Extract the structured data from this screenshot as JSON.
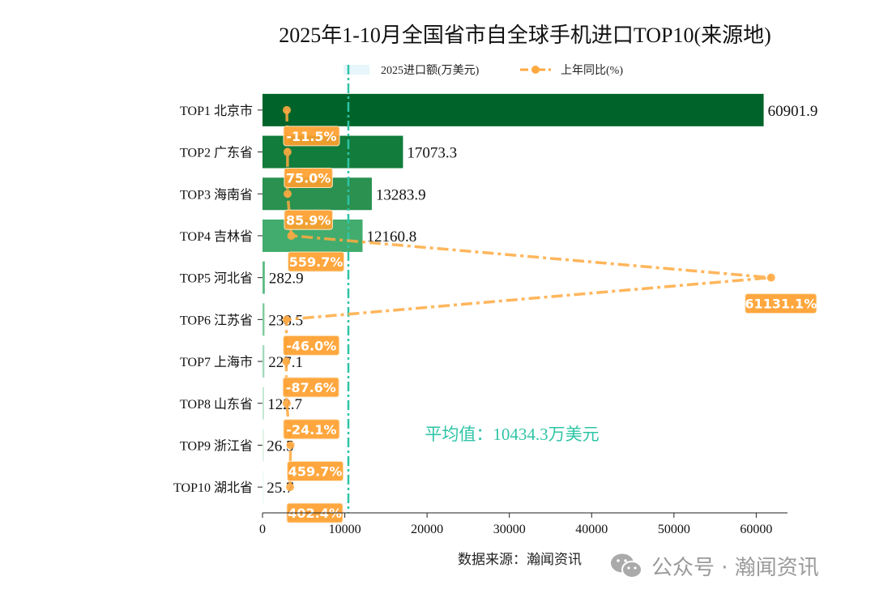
{
  "chart_data": {
    "type": "bar",
    "orientation": "horizontal",
    "title": "2025年1-10月全国省市自全球手机进口TOP10(来源地)",
    "categories": [
      "TOP1 北京市",
      "TOP2 广东省",
      "TOP3 海南省",
      "TOP4 吉林省",
      "TOP5 河北省",
      "TOP6 江苏省",
      "TOP7 上海市",
      "TOP8 山东省",
      "TOP9 浙江省",
      "TOP10 湖北省"
    ],
    "series": [
      {
        "name": "2025进口额(万美元)",
        "type": "bar",
        "values": [
          60901.9,
          17073.3,
          13283.9,
          12160.8,
          282.9,
          238.5,
          227.1,
          122.7,
          26.5,
          25.7
        ],
        "labels": [
          "60901.9",
          "17073.3",
          "13283.9",
          "12160.8",
          "282.9",
          "238.5",
          "227.1",
          "122.7",
          "26.5",
          "25.7"
        ]
      },
      {
        "name": "上年同比(%)",
        "type": "line",
        "values": [
          -11.5,
          75.0,
          85.9,
          559.7,
          61131.1,
          -46.0,
          -87.6,
          -24.1,
          459.7,
          402.4
        ],
        "labels": [
          "-11.5%",
          "75.0%",
          "85.9%",
          "559.7%",
          "61131.1%",
          "-46.0%",
          "-87.6%",
          "-24.1%",
          "459.7%",
          "402.4%"
        ]
      }
    ],
    "bar_colors": [
      "#00642a",
      "#117c3b",
      "#2a9150",
      "#41ac6d",
      "#5fbd86",
      "#7fcb9f",
      "#a3dabb",
      "#c4e8d2",
      "#e0f3e7",
      "#f2faf5"
    ],
    "line_color": "#ffa940",
    "xlim": [
      0,
      63800
    ],
    "secondary_xlim": [
      -3080,
      63200
    ],
    "xticks": [
      0,
      10000,
      20000,
      30000,
      40000,
      50000,
      60000
    ],
    "xtick_labels": [
      "0",
      "10000",
      "20000",
      "30000",
      "40000",
      "50000",
      "60000"
    ],
    "average": {
      "value": 10434.3,
      "label": "平均值：10434.3万美元",
      "color": "#2ec4a6"
    },
    "legend": {
      "placement": "top-center",
      "bar_swatch_color": "#e6f6fb"
    },
    "grid": false
  },
  "source": "数据来源：瀚闻资讯",
  "watermark": {
    "text": "公众号 · 瀚闻资讯",
    "icon": "wechat-icon"
  }
}
